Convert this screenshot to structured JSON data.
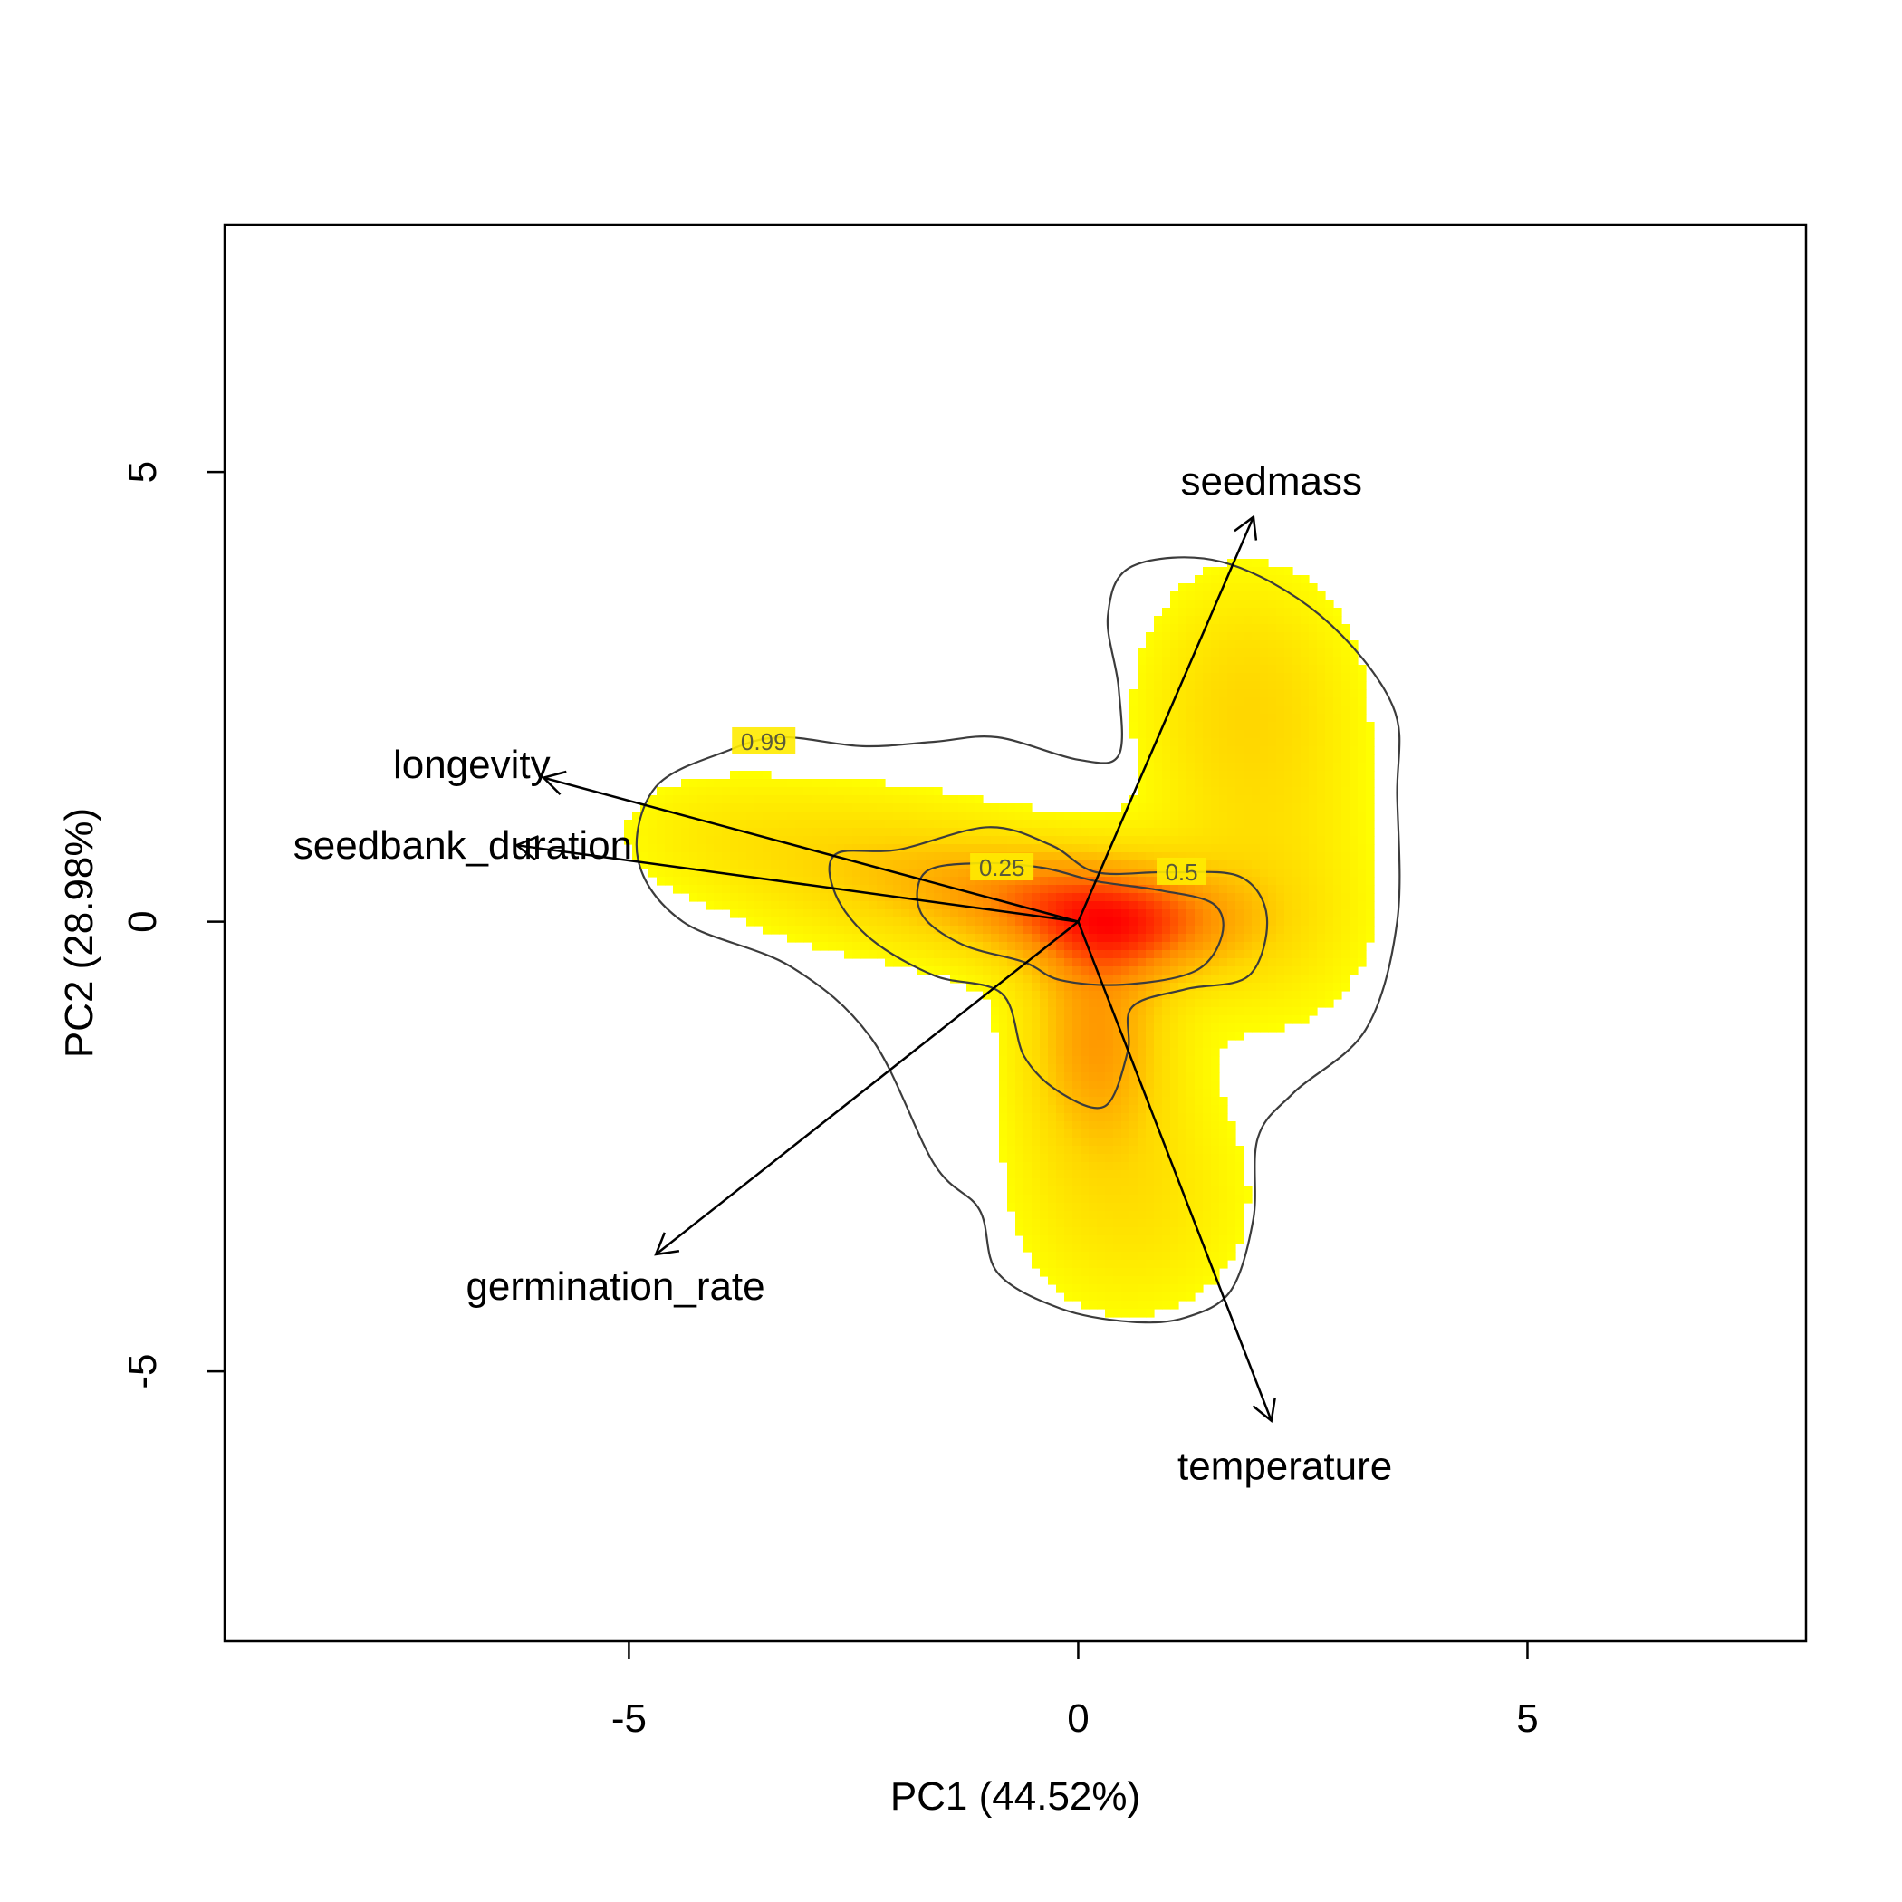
{
  "chart_data": {
    "type": "heatmap",
    "title": "",
    "xlabel": "PC1 (44.52%)",
    "ylabel": "PC2 (28.98%)",
    "xlim": [
      -9.5,
      8.1
    ],
    "ylim": [
      -8,
      7.75
    ],
    "xticks": [
      {
        "value": -5,
        "label": "-5"
      },
      {
        "value": 0,
        "label": "0"
      },
      {
        "value": 5,
        "label": "5"
      }
    ],
    "yticks": [
      {
        "value": -5,
        "label": "-5"
      },
      {
        "value": 0,
        "label": "0"
      },
      {
        "value": 5,
        "label": "5"
      }
    ],
    "grid": false,
    "colormap": [
      "#ffff00",
      "#ffd700",
      "#ff8c00",
      "#ff0000"
    ],
    "density_kernels": [
      {
        "x": 0.6,
        "y": 0.0,
        "sx": 0.9,
        "sy": 0.45,
        "w": 1.0
      },
      {
        "x": -0.7,
        "y": 0.3,
        "sx": 0.9,
        "sy": 0.45,
        "w": 0.6
      },
      {
        "x": -2.3,
        "y": 0.6,
        "sx": 1.0,
        "sy": 0.55,
        "w": 0.4
      },
      {
        "x": 0.2,
        "y": -1.3,
        "sx": 0.55,
        "sy": 0.85,
        "w": 0.75
      },
      {
        "x": 0.6,
        "y": -3.1,
        "sx": 0.9,
        "sy": 0.9,
        "w": 0.3
      },
      {
        "x": 1.9,
        "y": 2.4,
        "sx": 0.8,
        "sy": 1.0,
        "w": 0.4
      },
      {
        "x": 2.2,
        "y": 0.2,
        "sx": 0.8,
        "sy": 1.0,
        "w": 0.25
      },
      {
        "x": -4.0,
        "y": 1.0,
        "sx": 0.9,
        "sy": 0.5,
        "w": 0.2
      }
    ],
    "contours": [
      {
        "label": "0.99",
        "label_at": [
          -3.5,
          2.0
        ],
        "points": [
          [
            -3.9,
            1.9
          ],
          [
            -3.3,
            2.05
          ],
          [
            -2.4,
            1.95
          ],
          [
            -1.6,
            2.0
          ],
          [
            -0.9,
            2.05
          ],
          [
            0.0,
            1.8
          ],
          [
            0.45,
            1.85
          ],
          [
            0.45,
            2.6
          ],
          [
            0.33,
            3.4
          ],
          [
            0.6,
            3.95
          ],
          [
            1.6,
            4.0
          ],
          [
            2.7,
            3.4
          ],
          [
            3.5,
            2.4
          ],
          [
            3.55,
            1.4
          ],
          [
            3.55,
            0.0
          ],
          [
            3.2,
            -1.2
          ],
          [
            2.4,
            -1.9
          ],
          [
            2.0,
            -2.4
          ],
          [
            1.95,
            -3.3
          ],
          [
            1.7,
            -4.1
          ],
          [
            1.2,
            -4.4
          ],
          [
            0.6,
            -4.45
          ],
          [
            -0.2,
            -4.3
          ],
          [
            -0.9,
            -3.9
          ],
          [
            -1.1,
            -3.2
          ],
          [
            -1.6,
            -2.7
          ],
          [
            -2.3,
            -1.3
          ],
          [
            -3.2,
            -0.5
          ],
          [
            -4.4,
            0.0
          ],
          [
            -4.9,
            0.7
          ],
          [
            -4.7,
            1.5
          ],
          [
            -3.9,
            1.9
          ]
        ]
      },
      {
        "label": "0.5",
        "label_at": [
          1.15,
          0.55
        ],
        "points": [
          [
            -2.7,
            0.75
          ],
          [
            -2.0,
            0.8
          ],
          [
            -1.0,
            1.05
          ],
          [
            -0.3,
            0.85
          ],
          [
            0.2,
            0.55
          ],
          [
            1.0,
            0.55
          ],
          [
            1.8,
            0.5
          ],
          [
            2.1,
            0.05
          ],
          [
            1.9,
            -0.6
          ],
          [
            1.2,
            -0.75
          ],
          [
            0.6,
            -0.95
          ],
          [
            0.55,
            -1.45
          ],
          [
            0.3,
            -2.05
          ],
          [
            -0.2,
            -1.9
          ],
          [
            -0.6,
            -1.5
          ],
          [
            -0.85,
            -0.8
          ],
          [
            -1.6,
            -0.6
          ],
          [
            -2.3,
            -0.2
          ],
          [
            -2.7,
            0.3
          ],
          [
            -2.7,
            0.75
          ]
        ]
      },
      {
        "label": "0.25",
        "label_at": [
          -0.85,
          0.6
        ],
        "points": [
          [
            -1.7,
            0.55
          ],
          [
            -1.1,
            0.65
          ],
          [
            -0.4,
            0.6
          ],
          [
            0.2,
            0.45
          ],
          [
            0.9,
            0.35
          ],
          [
            1.5,
            0.2
          ],
          [
            1.6,
            -0.15
          ],
          [
            1.3,
            -0.55
          ],
          [
            0.5,
            -0.7
          ],
          [
            -0.2,
            -0.65
          ],
          [
            -0.6,
            -0.45
          ],
          [
            -1.3,
            -0.25
          ],
          [
            -1.75,
            0.1
          ],
          [
            -1.7,
            0.55
          ]
        ]
      }
    ],
    "loadings": [
      {
        "name": "seedmass",
        "x": 1.95,
        "y": 4.5,
        "label_x": 2.15,
        "label_y": 4.9
      },
      {
        "name": "longevity",
        "x": -5.95,
        "y": 1.6,
        "label_x": -6.75,
        "label_y": 1.75
      },
      {
        "name": "seedbank_duration",
        "x": -6.25,
        "y": 0.85,
        "label_x": -6.85,
        "label_y": 0.85
      },
      {
        "name": "germination_rate",
        "x": -4.7,
        "y": -3.7,
        "label_x": -5.15,
        "label_y": -4.05
      },
      {
        "name": "temperature",
        "x": 2.15,
        "y": -5.55,
        "label_x": 2.3,
        "label_y": -6.05
      }
    ]
  }
}
